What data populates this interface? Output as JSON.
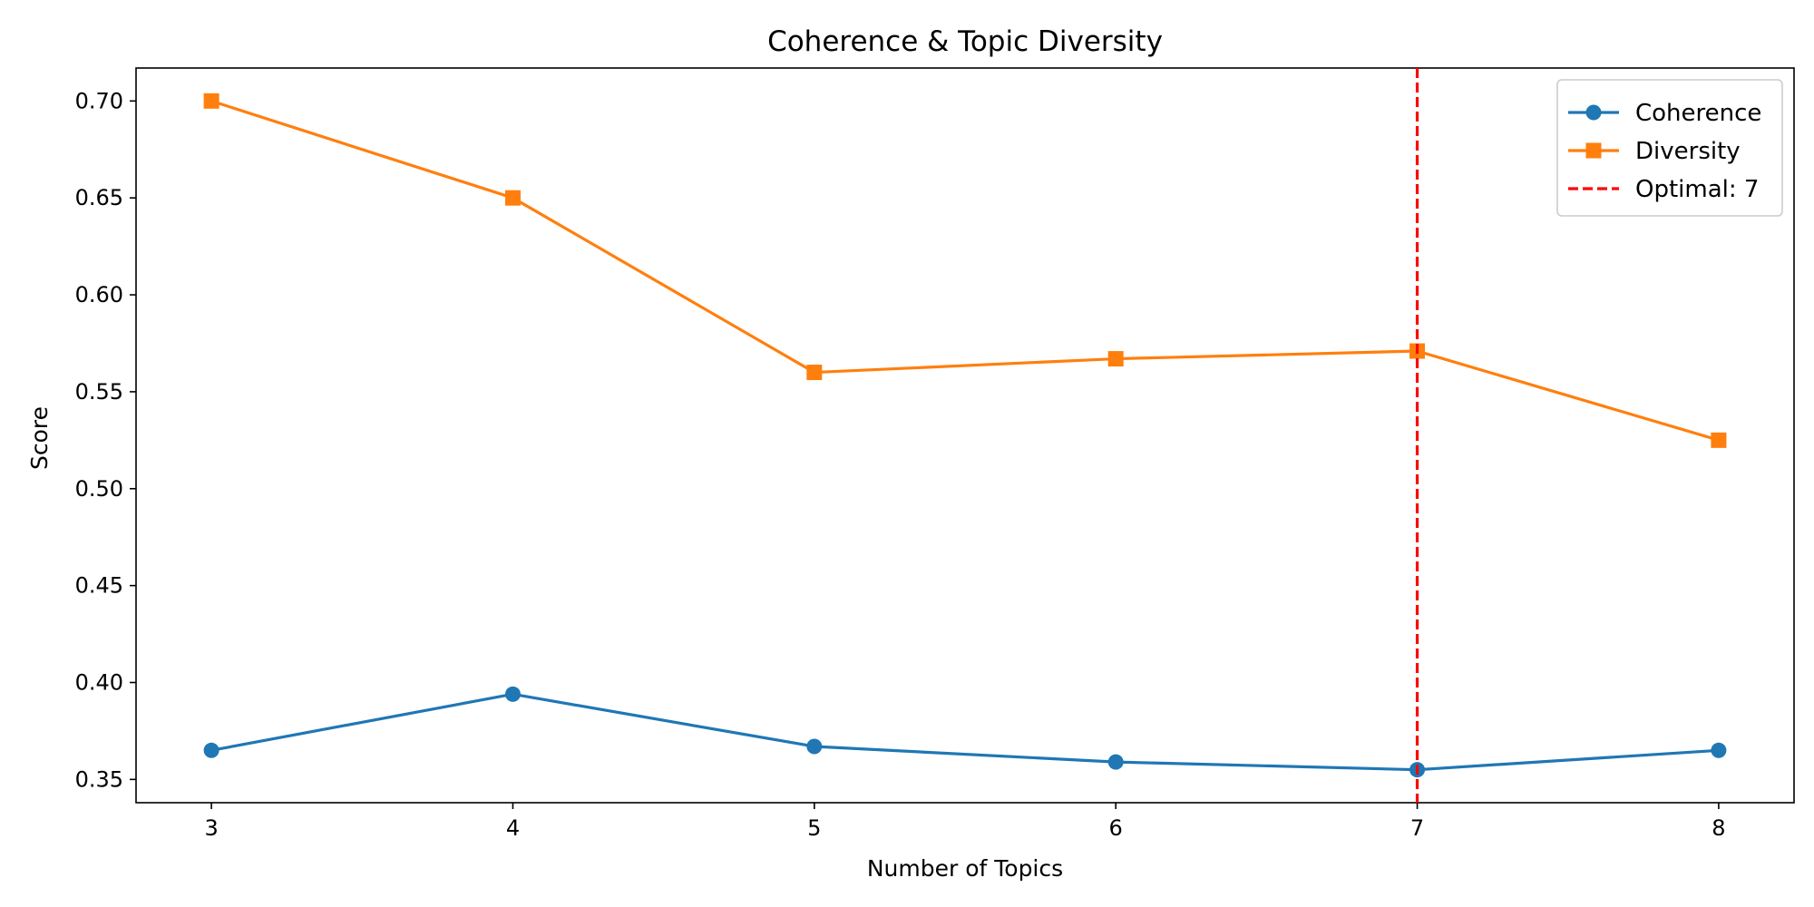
{
  "chart_data": {
    "type": "line",
    "title": "Coherence & Topic Diversity",
    "xlabel": "Number of Topics",
    "ylabel": "Score",
    "x": [
      3,
      4,
      5,
      6,
      7,
      8
    ],
    "xlim": [
      2.75,
      8.25
    ],
    "ylim": [
      0.338,
      0.717
    ],
    "yticks": [
      "0.35",
      "0.40",
      "0.45",
      "0.50",
      "0.55",
      "0.60",
      "0.65",
      "0.70"
    ],
    "xticks": [
      "3",
      "4",
      "5",
      "6",
      "7",
      "8"
    ],
    "grid": false,
    "legend_position": "top-right",
    "series": [
      {
        "name": "Coherence",
        "values": [
          0.365,
          0.394,
          0.367,
          0.359,
          0.355,
          0.365
        ],
        "color": "#1f77b4",
        "marker": "circle"
      },
      {
        "name": "Diversity",
        "values": [
          0.7,
          0.65,
          0.56,
          0.567,
          0.571,
          0.525
        ],
        "color": "#ff7f0e",
        "marker": "square"
      }
    ],
    "vline": {
      "x": 7,
      "label": "Optimal: 7",
      "color": "#ff0000",
      "style": "dashed"
    }
  }
}
